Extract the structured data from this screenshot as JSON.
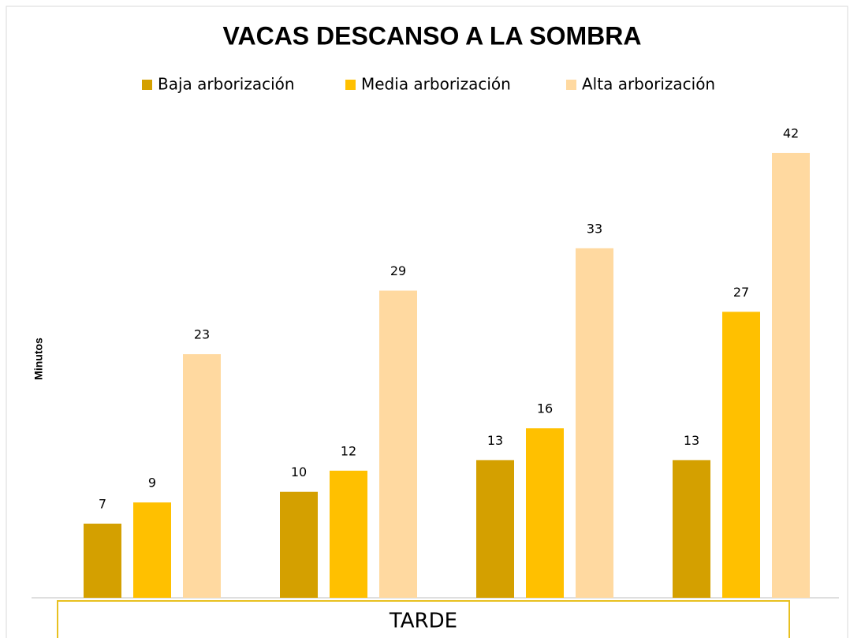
{
  "chart_data": {
    "type": "bar",
    "title": "VACAS DESCANSO A LA SOMBRA",
    "y_label": "Minutos",
    "x_label": "TARDE",
    "categories": [
      null,
      null,
      null,
      null
    ],
    "series": [
      {
        "name": "Baja arborización",
        "color": "#d4a000",
        "values": [
          7,
          10,
          13,
          13
        ]
      },
      {
        "name": "Media arborización",
        "color": "#ffc000",
        "values": [
          9,
          12,
          16,
          27
        ]
      },
      {
        "name": "Alta arborización",
        "color": "#ffd9a0",
        "values": [
          23,
          29,
          33,
          42
        ]
      }
    ],
    "ylim": [
      0,
      45
    ],
    "legend": "top"
  }
}
